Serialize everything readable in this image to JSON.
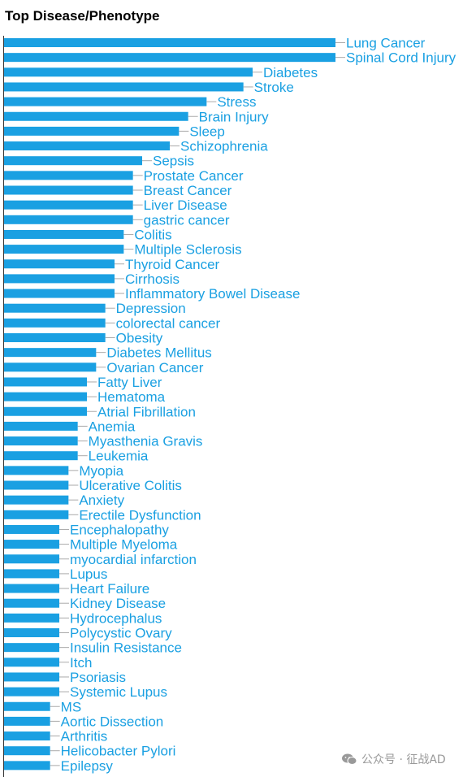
{
  "chart_data": {
    "type": "bar",
    "orientation": "horizontal",
    "title": "Top Disease/Phenotype",
    "bar_color": "#1aa0e2",
    "label_color": "#1aa0e2",
    "leader_color": "#aaaaaa",
    "xlim": [
      0,
      36
    ],
    "axis_ticks": false,
    "grid": false,
    "categories": [
      "Lung Cancer",
      "Spinal Cord Injury",
      "Diabetes",
      "Stroke",
      "Stress",
      "Brain Injury",
      "Sleep",
      "Schizophrenia",
      "Sepsis",
      "Prostate Cancer",
      "Breast Cancer",
      "Liver Disease",
      "gastric cancer",
      "Colitis",
      "Multiple Sclerosis",
      "Thyroid Cancer",
      "Cirrhosis",
      "Inflammatory Bowel Disease",
      "Depression",
      "colorectal cancer",
      "Obesity",
      "Diabetes Mellitus",
      "Ovarian Cancer",
      "Fatty Liver",
      "Hematoma",
      "Atrial Fibrillation",
      "Anemia",
      "Myasthenia Gravis",
      "Leukemia",
      "Myopia",
      "Ulcerative Colitis",
      "Anxiety",
      "Erectile Dysfunction",
      "Encephalopathy",
      "Multiple Myeloma",
      "myocardial infarction",
      "Lupus",
      "Heart Failure",
      "Kidney Disease",
      "Hydrocephalus",
      "Polycystic Ovary",
      "Insulin Resistance",
      "Itch",
      "Psoriasis",
      "Systemic Lupus",
      "MS",
      "Aortic Dissection",
      "Arthritis",
      "Helicobacter Pylori",
      "Epilepsy"
    ],
    "values": [
      36,
      36,
      27,
      26,
      22,
      20,
      19,
      18,
      15,
      14,
      14,
      14,
      14,
      13,
      13,
      12,
      12,
      12,
      11,
      11,
      11,
      10,
      10,
      9,
      9,
      9,
      8,
      8,
      8,
      7,
      7,
      7,
      7,
      6,
      6,
      6,
      6,
      6,
      6,
      6,
      6,
      6,
      6,
      6,
      6,
      5,
      5,
      5,
      5,
      5
    ]
  },
  "watermark": {
    "text": "公众号 · 征战AD",
    "icon": "wechat-icon"
  }
}
